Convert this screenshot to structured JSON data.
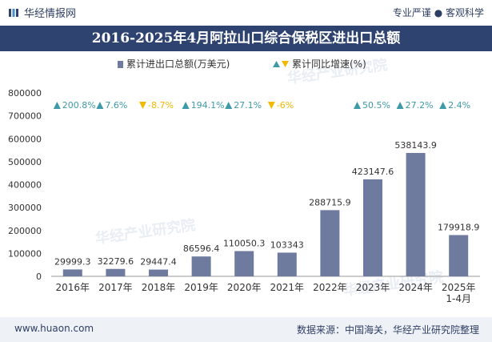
{
  "header": {
    "brand": "华经情报网",
    "tagline": "专业严谨 ● 客观科学"
  },
  "title": "2016-2025年4月阿拉山口综合保税区进出口总额",
  "footer": {
    "website": "www.huaon.com",
    "source": "数据来源：中国海关，华经产业研究院整理"
  },
  "watermark": "华经产业研究院",
  "colors": {
    "bar": "#6e7b9f",
    "up": "#3d9aa6",
    "down": "#f5b800",
    "title_bg": "#2f4370"
  },
  "chart_data": {
    "type": "bar",
    "title": "2016-2025年4月阿拉山口综合保税区进出口总额",
    "categories": [
      "2016年",
      "2017年",
      "2018年",
      "2019年",
      "2020年",
      "2021年",
      "2022年",
      "2023年",
      "2024年",
      "2025年"
    ],
    "category_sublabels": [
      "",
      "",
      "",
      "",
      "",
      "",
      "",
      "",
      "",
      "1-4月"
    ],
    "series": [
      {
        "name": "累计进出口总额(万美元)",
        "values": [
          29999.3,
          32279.6,
          29447.4,
          86596.4,
          110050.3,
          103343,
          288715.9,
          423147.6,
          538143.9,
          179918.9
        ],
        "value_labels": [
          "29999.3",
          "32279.6",
          "29447.4",
          "86596.4",
          "110050.3",
          "103343",
          "288715.9",
          "423147.6",
          "538143.9",
          "179918.9"
        ]
      },
      {
        "name": "累计同比增速(%)",
        "values": [
          200.8,
          7.6,
          -8.7,
          194.1,
          27.1,
          -6,
          null,
          50.5,
          27.2,
          2.4
        ],
        "value_labels": [
          "200.8%",
          "7.6%",
          "-8.7%",
          "194.1%",
          "27.1%",
          "-6%",
          "",
          "50.5%",
          "27.2%",
          "2.4%"
        ]
      }
    ],
    "ylim": [
      0,
      800000
    ],
    "yticks": [
      "0",
      "100000",
      "200000",
      "300000",
      "400000",
      "500000",
      "600000",
      "700000",
      "800000"
    ],
    "legend_position": "top-center",
    "grid": false
  }
}
